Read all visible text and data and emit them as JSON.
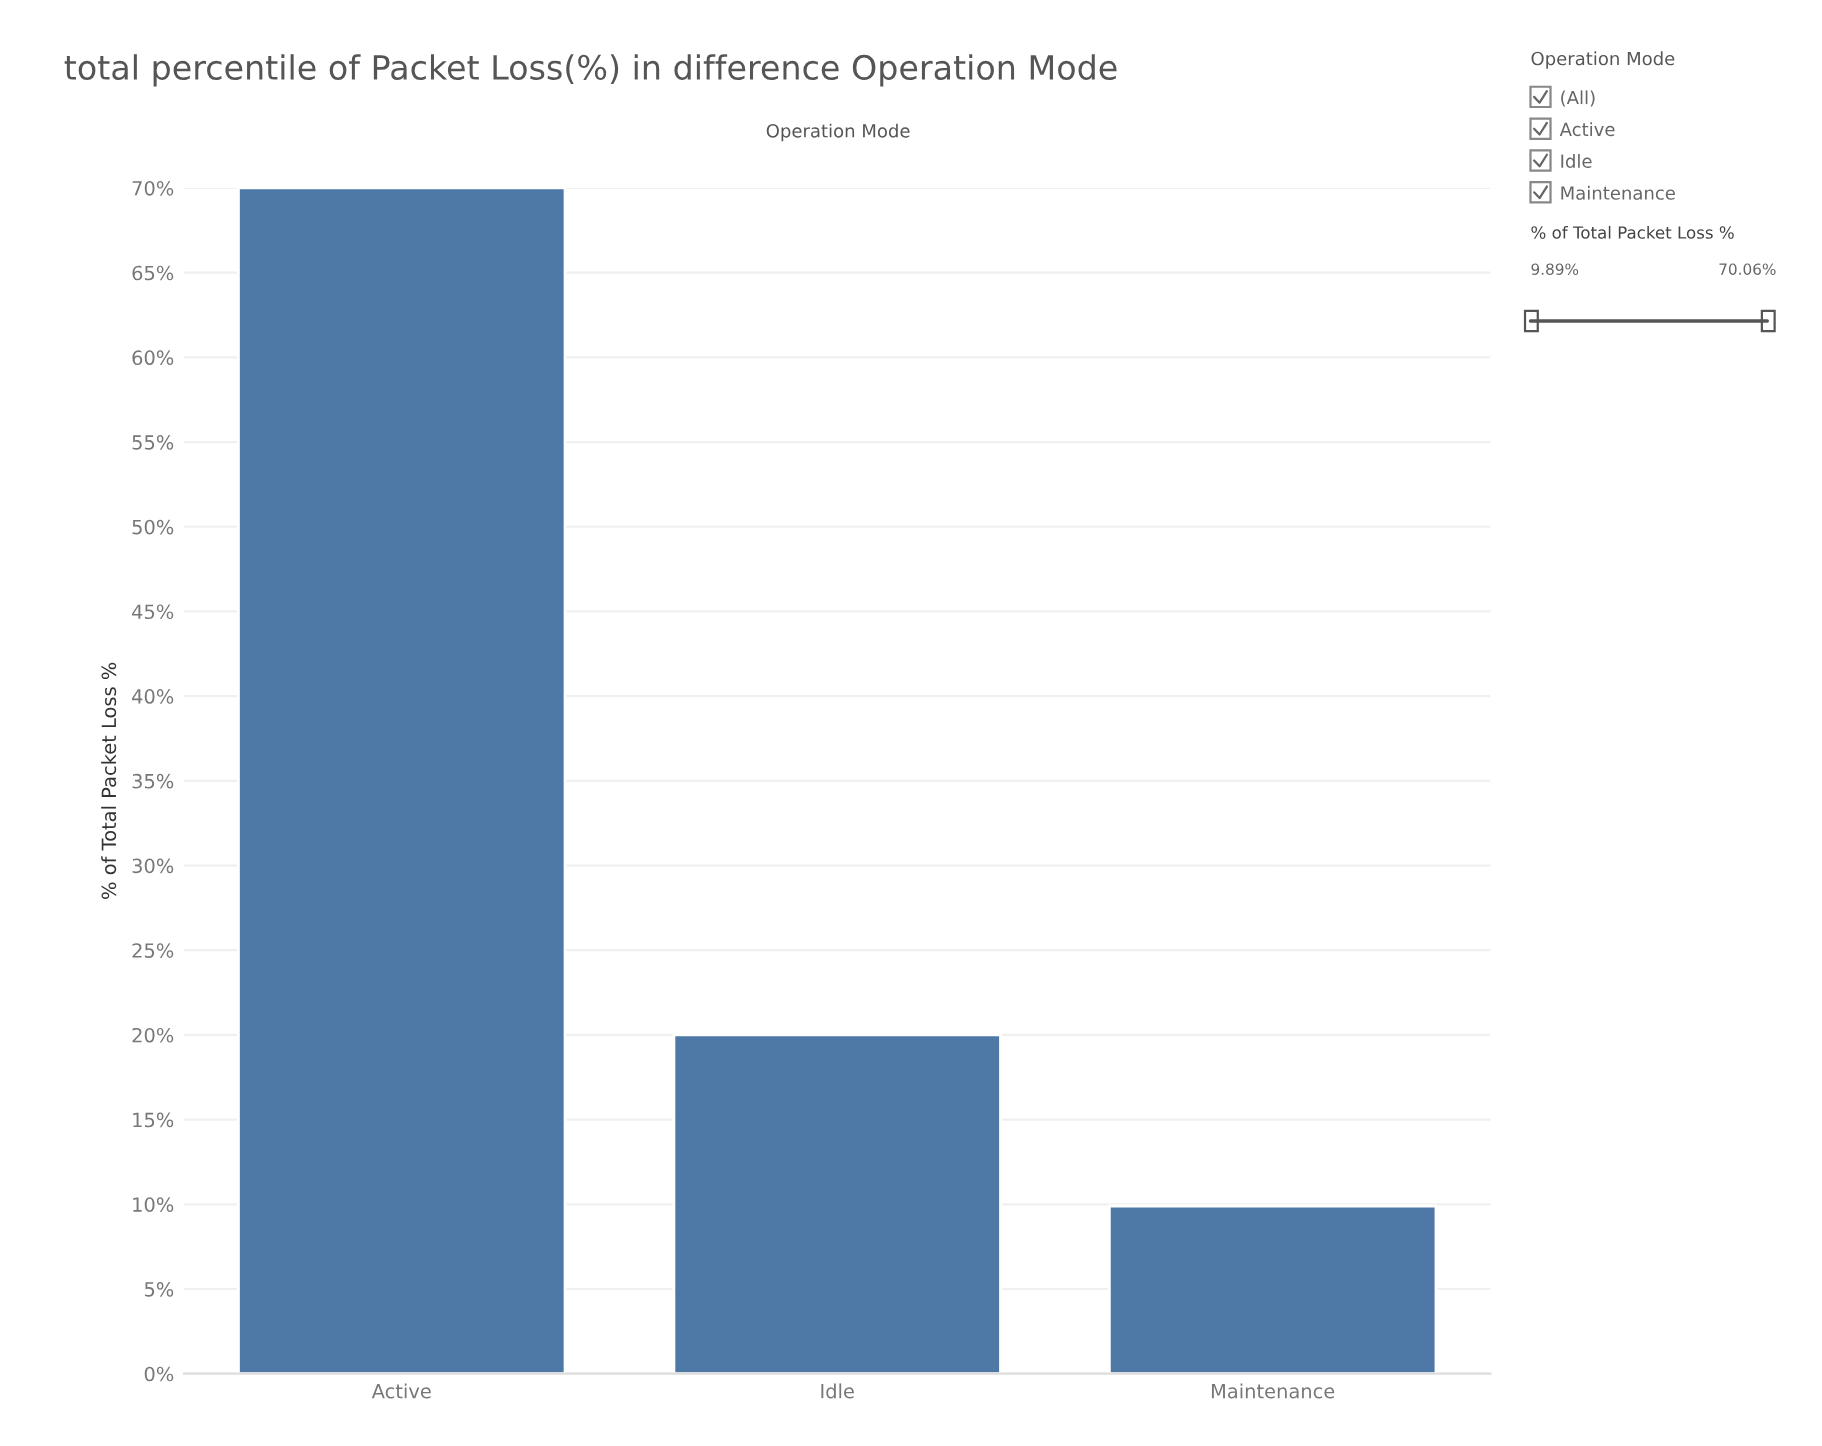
{
  "chart_data": {
    "type": "bar",
    "title": "total percentile of Packet Loss(%) in difference Operation Mode",
    "xlabel": "Operation Mode",
    "ylabel": "% of Total Packet Loss %",
    "categories": [
      "Active",
      "Idle",
      "Maintenance"
    ],
    "values": [
      70,
      20,
      9.9
    ],
    "color": "#4e79a7",
    "ylim": [
      0,
      70
    ],
    "yticks": [
      {
        "value": 0,
        "label": "0%"
      },
      {
        "value": 5,
        "label": "5%"
      },
      {
        "value": 10,
        "label": "10%"
      },
      {
        "value": 15,
        "label": "15%"
      },
      {
        "value": 20,
        "label": "20%"
      },
      {
        "value": 25,
        "label": "25%"
      },
      {
        "value": 30,
        "label": "30%"
      },
      {
        "value": 35,
        "label": "35%"
      },
      {
        "value": 40,
        "label": "40%"
      },
      {
        "value": 45,
        "label": "45%"
      },
      {
        "value": 50,
        "label": "50%"
      },
      {
        "value": 55,
        "label": "55%"
      },
      {
        "value": 60,
        "label": "60%"
      },
      {
        "value": 65,
        "label": "65%"
      },
      {
        "value": 70,
        "label": "70%"
      }
    ],
    "grid": "y",
    "legend": false,
    "annotations": [
      "Operation Mode",
      "(All)",
      "Active",
      "Idle",
      "Maintenance",
      "% of Total Packet Loss %",
      "9.89%",
      "70.06%"
    ]
  }
}
